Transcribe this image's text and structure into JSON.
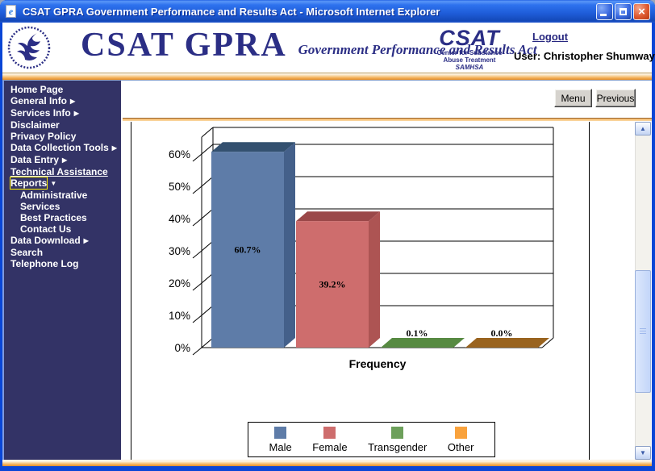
{
  "window": {
    "title": "CSAT GPRA Government Performance and Results Act - Microsoft Internet Explorer"
  },
  "header": {
    "brand_title": "CSAT GPRA",
    "brand_subtitle": "Government Performance and Results Act",
    "csat_logo": {
      "title": "CSAT",
      "line1": "Center for Substance",
      "line2": "Abuse Treatment",
      "line3": "SAMHSA"
    },
    "logout_label": "Logout",
    "user_label": "User: Christopher Shumway"
  },
  "toolbar": {
    "menu_label": "Menu",
    "previous_label": "Previous"
  },
  "sidebar": {
    "items": [
      {
        "label": "Home Page"
      },
      {
        "label": "General Info",
        "arrow": "right"
      },
      {
        "label": "Services Info",
        "arrow": "right"
      },
      {
        "label": "Disclaimer"
      },
      {
        "label": "Privacy Policy"
      },
      {
        "label": "Data Collection Tools",
        "arrow": "right"
      },
      {
        "label": "Data Entry",
        "arrow": "right"
      },
      {
        "label": "Technical Assistance",
        "underline": true
      },
      {
        "label": "Reports",
        "arrow": "down",
        "focused": true
      },
      {
        "label": "Administrative",
        "indent": true
      },
      {
        "label": "Services",
        "indent": true
      },
      {
        "label": "Best Practices",
        "indent": true
      },
      {
        "label": "Contact Us",
        "indent": true
      },
      {
        "label": "Data Download",
        "arrow": "right"
      },
      {
        "label": "Search"
      },
      {
        "label": "Telephone Log"
      }
    ]
  },
  "chart_data": {
    "type": "bar",
    "style": "3d",
    "categories": [
      "Male",
      "Female",
      "Transgender",
      "Other"
    ],
    "values": [
      60.7,
      39.2,
      0.1,
      0.0
    ],
    "value_labels": [
      "60.7%",
      "39.2%",
      "0.1%",
      "0.0%"
    ],
    "xlabel": "Frequency",
    "ylabel": "",
    "yticks": [
      "0%",
      "10%",
      "20%",
      "30%",
      "40%",
      "50%",
      "60%"
    ],
    "ylim": [
      0,
      68
    ],
    "grid": true,
    "legend_position": "bottom",
    "legend": [
      "Male",
      "Female",
      "Transgender",
      "Other"
    ],
    "legend_colors": [
      "#5E7CA8",
      "#CE6D6D",
      "#6DA05B",
      "#F9A23C"
    ],
    "bar_colors": [
      {
        "front": "#5E7CA8",
        "top": "#33506F",
        "side": "#44608A"
      },
      {
        "front": "#CE6D6D",
        "top": "#9B4849",
        "side": "#AD5453"
      },
      {
        "front": "#6DA05B",
        "top": "#578A42",
        "side": "#629350"
      },
      {
        "front": "#B87E2E",
        "top": "#99631F",
        "side": "#A66E24"
      }
    ]
  },
  "colors": {
    "titlebar_blue": "#1C5AE0",
    "window_border": "#0A46D6",
    "sidebar_bg": "#333366",
    "sidebar_text": "#FFFFFF",
    "focus_outline": "#FFF200",
    "link_navy": "#26267F",
    "brand_navy": "#2B2E85",
    "orange_band": "#F0A850",
    "button_face": "#D6D3CE"
  }
}
